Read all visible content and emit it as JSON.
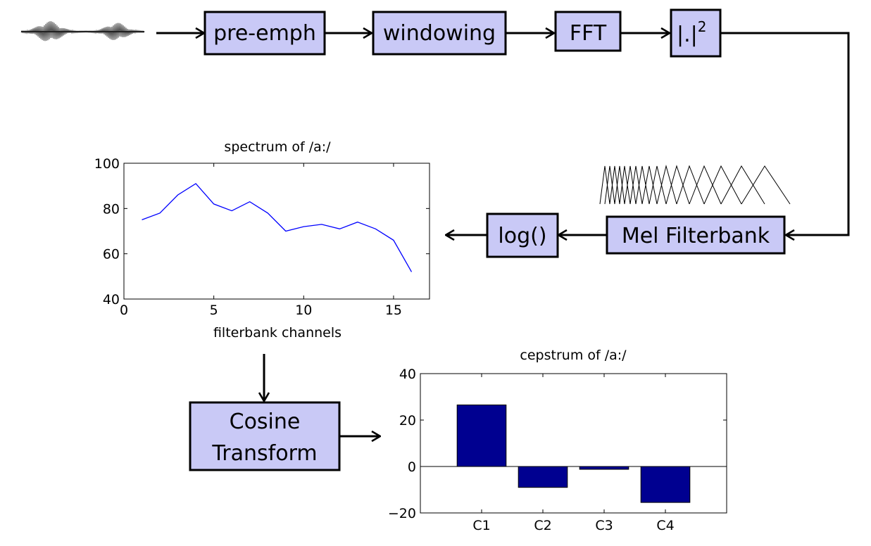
{
  "pipeline": {
    "pre_emph": "pre-emph",
    "windowing": "windowing",
    "fft": "FFT",
    "power_base": "|.|",
    "power_exp": "2",
    "mel_filterbank": "Mel Filterbank",
    "log": "log()",
    "cosine_line1": "Cosine",
    "cosine_line2": "Transform"
  },
  "chart_data": [
    {
      "type": "line",
      "title": "spectrum of /a:/",
      "xlabel": "filterbank channels",
      "ylabel": "",
      "xlim": [
        0,
        17
      ],
      "ylim": [
        40,
        100
      ],
      "xticks": [
        0,
        5,
        10,
        15
      ],
      "yticks": [
        40,
        60,
        80,
        100
      ],
      "color": "#0000ff",
      "grid": false,
      "x": [
        1,
        2,
        3,
        4,
        5,
        6,
        7,
        8,
        9,
        10,
        11,
        12,
        13,
        14,
        15,
        16
      ],
      "y": [
        75,
        78,
        86,
        91,
        82,
        79,
        83,
        78,
        70,
        72,
        73,
        71,
        74,
        71,
        66,
        52
      ]
    },
    {
      "type": "bar",
      "title": "cepstrum of /a:/",
      "xlabel": "",
      "ylabel": "",
      "categories": [
        "C1",
        "C2",
        "C3",
        "C4"
      ],
      "values": [
        26.5,
        -9,
        -1.2,
        -15.5
      ],
      "ylim": [
        -20,
        40
      ],
      "yticks": [
        -20,
        0,
        20,
        40
      ],
      "color": "#000090",
      "grid": false
    }
  ]
}
